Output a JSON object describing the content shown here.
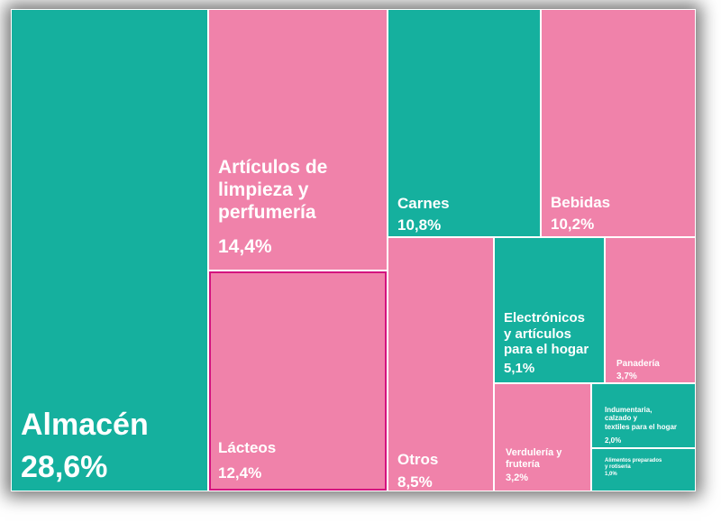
{
  "colors": {
    "teal": "#15b09e",
    "pink": "#f082aa",
    "highlight_border": "#d4127e"
  },
  "chart_data": {
    "type": "treemap",
    "title": "",
    "unit": "%",
    "items": [
      {
        "name": "Almacén",
        "value": 28.6,
        "value_label": "28,6%",
        "color": "teal"
      },
      {
        "name": "Artículos de limpieza y perfumería",
        "value": 14.4,
        "value_label": "14,4%",
        "color": "pink"
      },
      {
        "name": "Lácteos",
        "value": 12.4,
        "value_label": "12,4%",
        "color": "pink",
        "highlighted": true
      },
      {
        "name": "Carnes",
        "value": 10.8,
        "value_label": "10,8%",
        "color": "teal"
      },
      {
        "name": "Bebidas",
        "value": 10.2,
        "value_label": "10,2%",
        "color": "pink"
      },
      {
        "name": "Otros",
        "value": 8.5,
        "value_label": "8,5%",
        "color": "pink"
      },
      {
        "name": "Electrónicos y artículos para el hogar",
        "value": 5.1,
        "value_label": "5,1%",
        "color": "teal"
      },
      {
        "name": "Panadería",
        "value": 3.7,
        "value_label": "3,7%",
        "color": "pink"
      },
      {
        "name": "Verdulería y frutería",
        "value": 3.2,
        "value_label": "3,2%",
        "color": "pink"
      },
      {
        "name": "Indumentaria, calzado y textiles para el hogar",
        "value": 2.0,
        "value_label": "2,0%",
        "color": "teal"
      },
      {
        "name": "Alimentos preparados y rotisería",
        "value": 1.0,
        "value_label": "1,0%",
        "color": "teal"
      }
    ]
  }
}
